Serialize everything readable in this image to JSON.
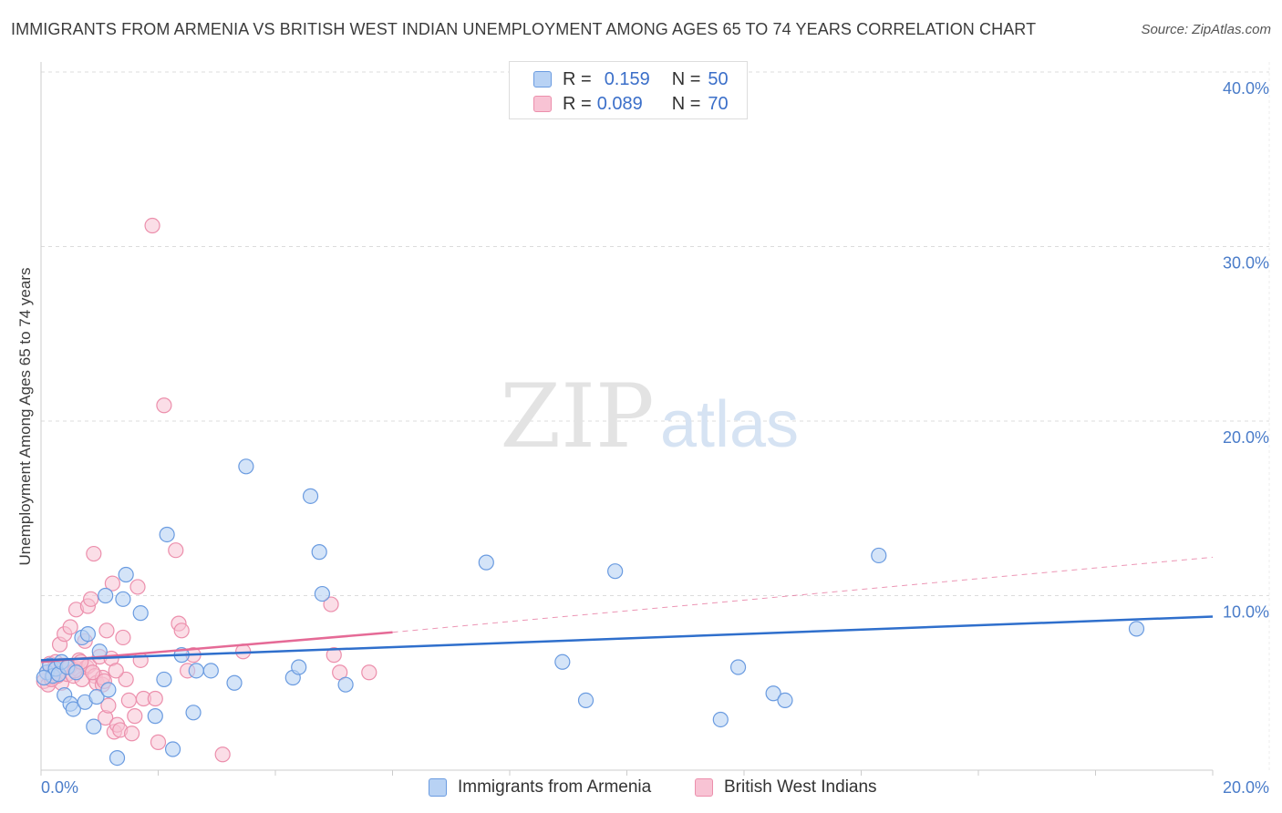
{
  "header": {
    "title": "IMMIGRANTS FROM ARMENIA VS BRITISH WEST INDIAN UNEMPLOYMENT AMONG AGES 65 TO 74 YEARS CORRELATION CHART",
    "source": "Source: ZipAtlas.com"
  },
  "watermark": {
    "zip": "ZIP",
    "atlas": "atlas"
  },
  "legend": {
    "rows": [
      {
        "r_label": "R =",
        "r_value": "0.159",
        "n_label": "N =",
        "n_value": "50"
      },
      {
        "r_label": "R =",
        "r_value": "0.089",
        "n_label": "N =",
        "n_value": "70"
      }
    ]
  },
  "bottom_legend": {
    "series1": "Immigrants from Armenia",
    "series2": "British West Indians"
  },
  "colors": {
    "blue_fill": "#b8d2f4",
    "blue_stroke": "#6a9be0",
    "blue_line": "#2f6fcc",
    "pink_fill": "#f8c3d4",
    "pink_stroke": "#ec8fac",
    "pink_line": "#e56a96",
    "tick_text": "#4a7cc9",
    "grid": "#dcdcdc"
  },
  "chart_data": {
    "type": "scatter",
    "title": "IMMIGRANTS FROM ARMENIA VS BRITISH WEST INDIAN UNEMPLOYMENT AMONG AGES 65 TO 74 YEARS CORRELATION CHART",
    "xlabel": "",
    "ylabel": "Unemployment Among Ages 65 to 74 years",
    "xlim": [
      0,
      20
    ],
    "ylim": [
      0,
      40
    ],
    "y_ticks": [
      10,
      20,
      30,
      40
    ],
    "y_tick_labels": [
      "10.0%",
      "20.0%",
      "30.0%",
      "40.0%"
    ],
    "x_tick_labels": [
      "0.0%",
      "20.0%"
    ],
    "series": [
      {
        "name": "Immigrants from Armenia",
        "R": 0.159,
        "N": 50,
        "trend": {
          "x": [
            0,
            20
          ],
          "y": [
            6.3,
            8.8
          ]
        },
        "points": [
          [
            0.1,
            5.6
          ],
          [
            0.15,
            6.0
          ],
          [
            0.2,
            5.4
          ],
          [
            0.25,
            5.8
          ],
          [
            0.3,
            5.5
          ],
          [
            0.35,
            6.2
          ],
          [
            0.4,
            4.3
          ],
          [
            0.45,
            5.9
          ],
          [
            0.5,
            3.8
          ],
          [
            0.55,
            3.5
          ],
          [
            0.6,
            5.6
          ],
          [
            0.7,
            7.6
          ],
          [
            0.75,
            3.9
          ],
          [
            0.8,
            7.8
          ],
          [
            0.9,
            2.5
          ],
          [
            0.95,
            4.2
          ],
          [
            1.0,
            6.8
          ],
          [
            1.1,
            10.0
          ],
          [
            1.15,
            4.6
          ],
          [
            1.3,
            0.7
          ],
          [
            1.4,
            9.8
          ],
          [
            1.45,
            11.2
          ],
          [
            1.7,
            9.0
          ],
          [
            1.95,
            3.1
          ],
          [
            2.1,
            5.2
          ],
          [
            2.15,
            13.5
          ],
          [
            2.25,
            1.2
          ],
          [
            2.4,
            6.6
          ],
          [
            2.6,
            3.3
          ],
          [
            2.65,
            5.7
          ],
          [
            2.9,
            5.7
          ],
          [
            3.3,
            5.0
          ],
          [
            3.5,
            17.4
          ],
          [
            4.3,
            5.3
          ],
          [
            4.4,
            5.9
          ],
          [
            4.6,
            15.7
          ],
          [
            4.75,
            12.5
          ],
          [
            4.8,
            10.1
          ],
          [
            5.2,
            4.9
          ],
          [
            7.6,
            11.9
          ],
          [
            8.9,
            6.2
          ],
          [
            9.8,
            11.4
          ],
          [
            9.3,
            4.0
          ],
          [
            11.6,
            2.9
          ],
          [
            11.9,
            5.9
          ],
          [
            12.5,
            4.4
          ],
          [
            12.7,
            4.0
          ],
          [
            14.3,
            12.3
          ],
          [
            18.7,
            8.1
          ],
          [
            0.05,
            5.3
          ]
        ]
      },
      {
        "name": "British West Indians",
        "R": 0.089,
        "N": 70,
        "trend": {
          "x": [
            0,
            6.0
          ],
          "y": [
            6.2,
            7.9
          ]
        },
        "trend_extension": {
          "x": [
            6.0,
            20
          ],
          "y": [
            7.9,
            12.2
          ]
        },
        "points": [
          [
            0.05,
            5.1
          ],
          [
            0.1,
            5.6
          ],
          [
            0.12,
            4.9
          ],
          [
            0.15,
            6.1
          ],
          [
            0.2,
            5.3
          ],
          [
            0.22,
            5.8
          ],
          [
            0.25,
            6.2
          ],
          [
            0.3,
            5.5
          ],
          [
            0.32,
            7.2
          ],
          [
            0.35,
            5.0
          ],
          [
            0.4,
            7.8
          ],
          [
            0.42,
            6.0
          ],
          [
            0.45,
            5.5
          ],
          [
            0.5,
            8.2
          ],
          [
            0.55,
            5.4
          ],
          [
            0.6,
            9.2
          ],
          [
            0.62,
            5.8
          ],
          [
            0.65,
            6.3
          ],
          [
            0.7,
            5.2
          ],
          [
            0.75,
            7.4
          ],
          [
            0.78,
            5.9
          ],
          [
            0.8,
            9.4
          ],
          [
            0.82,
            6.0
          ],
          [
            0.85,
            9.8
          ],
          [
            0.9,
            12.4
          ],
          [
            0.92,
            5.4
          ],
          [
            0.95,
            5.0
          ],
          [
            1.0,
            6.5
          ],
          [
            1.05,
            4.9
          ],
          [
            1.1,
            3.0
          ],
          [
            1.12,
            8.0
          ],
          [
            1.15,
            3.7
          ],
          [
            1.2,
            6.4
          ],
          [
            1.22,
            10.7
          ],
          [
            1.25,
            2.2
          ],
          [
            1.3,
            2.6
          ],
          [
            1.35,
            2.3
          ],
          [
            1.4,
            7.6
          ],
          [
            1.45,
            5.2
          ],
          [
            1.5,
            4.0
          ],
          [
            1.55,
            2.1
          ],
          [
            1.6,
            3.1
          ],
          [
            1.65,
            10.5
          ],
          [
            1.7,
            6.3
          ],
          [
            1.75,
            4.1
          ],
          [
            1.9,
            31.2
          ],
          [
            1.95,
            4.1
          ],
          [
            2.0,
            1.6
          ],
          [
            2.1,
            20.9
          ],
          [
            2.3,
            12.6
          ],
          [
            2.35,
            8.4
          ],
          [
            2.4,
            8.0
          ],
          [
            2.5,
            5.7
          ],
          [
            2.6,
            6.6
          ],
          [
            3.1,
            0.9
          ],
          [
            3.45,
            6.8
          ],
          [
            4.95,
            9.5
          ],
          [
            5.0,
            6.6
          ],
          [
            5.1,
            5.6
          ],
          [
            5.6,
            5.6
          ],
          [
            1.05,
            5.3
          ],
          [
            0.35,
            6.0
          ],
          [
            0.48,
            5.9
          ],
          [
            0.58,
            5.7
          ],
          [
            0.68,
            6.2
          ],
          [
            0.88,
            5.6
          ],
          [
            1.08,
            5.1
          ],
          [
            1.28,
            5.7
          ],
          [
            0.28,
            5.4
          ],
          [
            0.18,
            5.2
          ]
        ]
      }
    ]
  }
}
